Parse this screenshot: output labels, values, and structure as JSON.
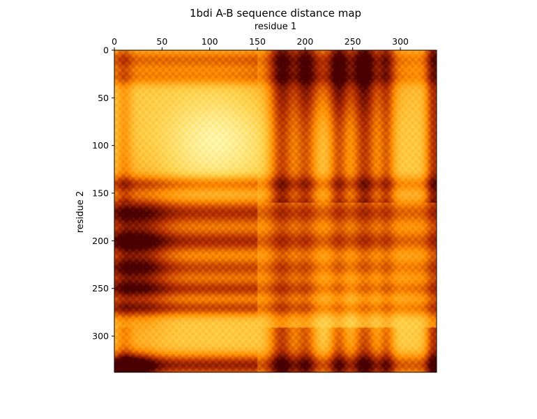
{
  "chart_data": {
    "type": "heatmap",
    "title": "1bdi A-B sequence distance map",
    "xlabel": "residue 1",
    "ylabel": "residue 2",
    "xlim": [
      0,
      338
    ],
    "ylim": [
      0,
      338
    ],
    "x_axis_position": "top",
    "y_axis_inverted": true,
    "x_ticks": [
      0,
      50,
      100,
      150,
      200,
      250,
      300
    ],
    "y_ticks": [
      0,
      50,
      100,
      150,
      200,
      250,
      300
    ],
    "x_tick_labels": [
      "0",
      "50",
      "100",
      "150",
      "200",
      "250",
      "300"
    ],
    "y_tick_labels": [
      "0",
      "50",
      "100",
      "150",
      "200",
      "250",
      "300"
    ],
    "colormap": "afmhot",
    "colors": [
      "#4a0000",
      "#b83200",
      "#ff8c00",
      "#ffd24a",
      "#ffffc0"
    ],
    "grid": false,
    "legend": "none",
    "n_residues": 338,
    "description_values": "distance values between residue pairs; dark = small distance, light = large distance"
  }
}
